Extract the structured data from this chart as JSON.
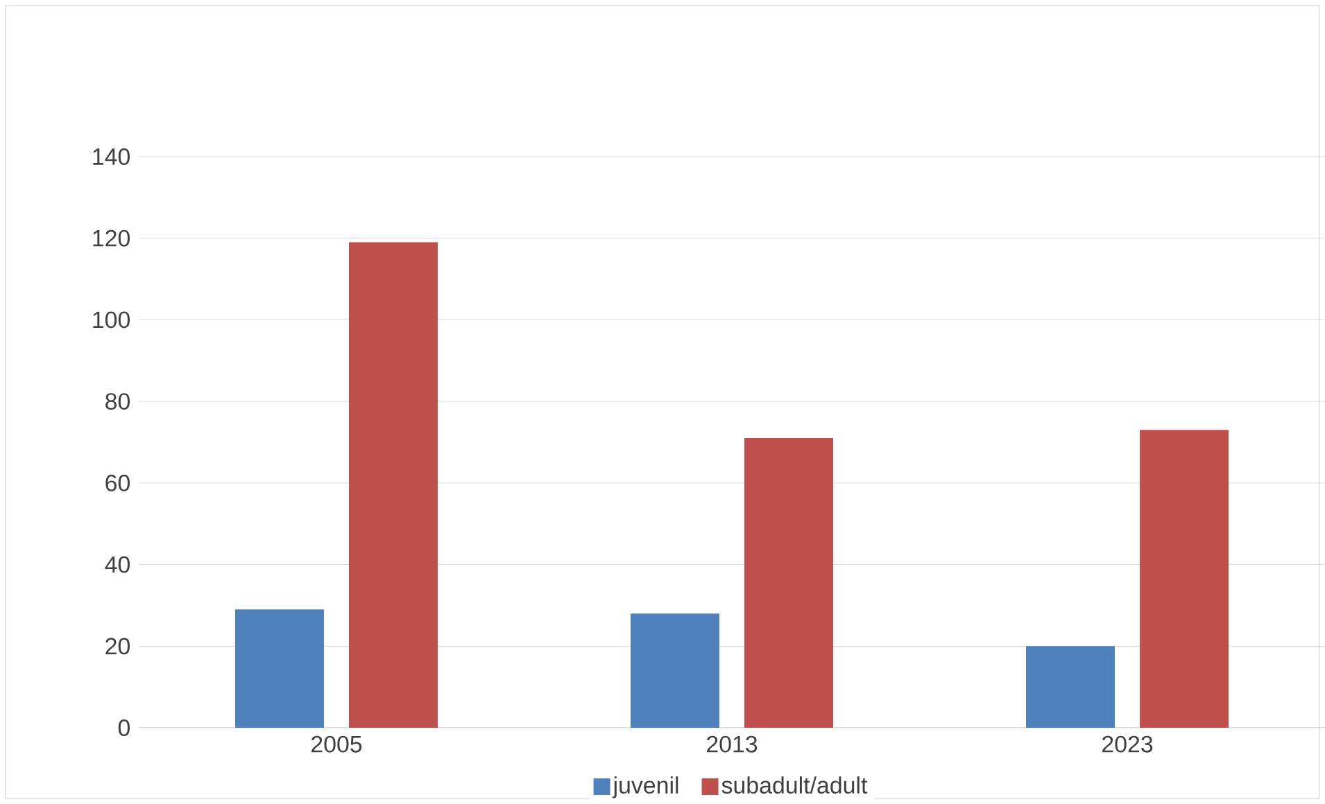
{
  "chart_data": {
    "type": "bar",
    "categories": [
      "2005",
      "2013",
      "2023"
    ],
    "series": [
      {
        "name": "juvenil",
        "color": "#4f81bd",
        "values": [
          29,
          28,
          20
        ]
      },
      {
        "name": "subadult/adult",
        "color": "#c0504d",
        "values": [
          119,
          71,
          73
        ]
      }
    ],
    "ylim": [
      0,
      140
    ],
    "yticks": [
      0,
      20,
      40,
      60,
      80,
      100,
      120,
      140
    ],
    "grid": "y",
    "legend": "bottom"
  }
}
